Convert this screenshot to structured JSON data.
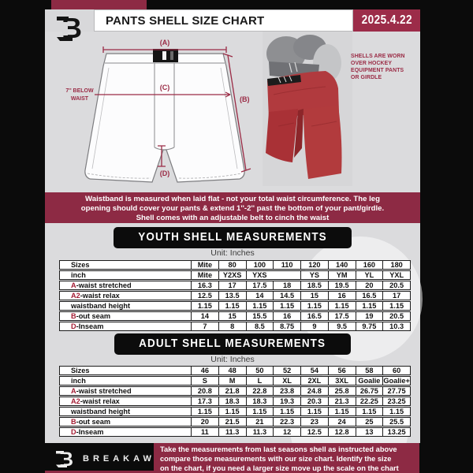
{
  "colors": {
    "maroon": "#8d2a44",
    "date_maroon": "#9c2c49",
    "accent_red": "#a41e35",
    "black": "#0b0b0b",
    "page_gray": "#dbdbdd",
    "shell_red": "#ad3237"
  },
  "header": {
    "title": "PANTS SHELL SIZE CHART",
    "date": "2025.4.22"
  },
  "diagram": {
    "label_a": "(A)",
    "label_b": "(B)",
    "label_c": "(C)",
    "label_d": "(D)",
    "note_line1": "7'' BELOW",
    "note_line2": "WAIST"
  },
  "photo_note": {
    "lines": [
      "SHELLS ARE WORN",
      "OVER HOCKEY",
      "EQUIPMENT PANTS",
      "OR GIRDLE"
    ]
  },
  "banner": {
    "lines": [
      "Waistband is measured when laid flat - not your total waist circumference. The leg",
      "opening should cover your pants & extend 1''-2'' past the bottom of your pant/girdle.",
      "Shell comes with an adjustable belt to cinch the waist"
    ]
  },
  "youth": {
    "title": "YOUTH SHELL MEASUREMENTS",
    "unit": "Unit: Inches"
  },
  "adult": {
    "title": "ADULT SHELL MEASUREMENTS",
    "unit": "Unit: Inches"
  },
  "youth_table": {
    "rows": [
      {
        "accent": "",
        "label": "Sizes",
        "cells": [
          "Mite",
          "80",
          "100",
          "110",
          "120",
          "140",
          "160",
          "180"
        ]
      },
      {
        "accent": "",
        "label": "inch",
        "cells": [
          "Mite",
          "Y2XS",
          "YXS",
          "",
          "YS",
          "YM",
          "YL",
          "YXL"
        ]
      },
      {
        "accent": "A",
        "label": "-waist stretched",
        "cells": [
          "16.3",
          "17",
          "17.5",
          "18",
          "18.5",
          "19.5",
          "20",
          "20.5"
        ]
      },
      {
        "accent": "A2",
        "label": "-waist relax",
        "cells": [
          "12.5",
          "13.5",
          "14",
          "14.5",
          "15",
          "16",
          "16.5",
          "17"
        ]
      },
      {
        "accent": "",
        "label": "waistband height",
        "cells": [
          "1.15",
          "1.15",
          "1.15",
          "1.15",
          "1.15",
          "1.15",
          "1.15",
          "1.15"
        ]
      },
      {
        "accent": "B",
        "label": "-out seam",
        "cells": [
          "14",
          "15",
          "15.5",
          "16",
          "16.5",
          "17.5",
          "19",
          "20.5"
        ]
      },
      {
        "accent": "D",
        "label": "-Inseam",
        "cells": [
          "7",
          "8",
          "8.5",
          "8.75",
          "9",
          "9.5",
          "9.75",
          "10.3"
        ]
      }
    ]
  },
  "adult_table": {
    "rows": [
      {
        "accent": "",
        "label": "Sizes",
        "cells": [
          "46",
          "48",
          "50",
          "52",
          "54",
          "56",
          "58",
          "60"
        ]
      },
      {
        "accent": "",
        "label": "inch",
        "cells": [
          "S",
          "M",
          "L",
          "XL",
          "2XL",
          "3XL",
          "Goalie",
          "Goalie+"
        ]
      },
      {
        "accent": "A",
        "label": "-waist stretched",
        "cells": [
          "20.8",
          "21.8",
          "22.8",
          "23.8",
          "24.8",
          "25.8",
          "26.75",
          "27.75"
        ]
      },
      {
        "accent": "A2",
        "label": "-waist relax",
        "cells": [
          "17.3",
          "18.3",
          "18.3",
          "19.3",
          "20.3",
          "21.3",
          "22.25",
          "23.25"
        ]
      },
      {
        "accent": "",
        "label": "waistband height",
        "cells": [
          "1.15",
          "1.15",
          "1.15",
          "1.15",
          "1.15",
          "1.15",
          "1.15",
          "1.15"
        ]
      },
      {
        "accent": "B",
        "label": "-out seam",
        "cells": [
          "20",
          "21.5",
          "21",
          "22.3",
          "23",
          "24",
          "25",
          "25.5"
        ]
      },
      {
        "accent": "D",
        "label": "-Inseam",
        "cells": [
          "11",
          "11.3",
          "11.3",
          "12",
          "12.5",
          "12.8",
          "13",
          "13.25"
        ]
      }
    ]
  },
  "footer": {
    "brand": "BREAKAWAY",
    "note_lines": [
      "Take the measurements from last seasons shell as instructed above",
      "compare those measurements  with our size chart. Identify the size",
      "on the chart, if you need a larger size move up the scale on the chart"
    ]
  }
}
